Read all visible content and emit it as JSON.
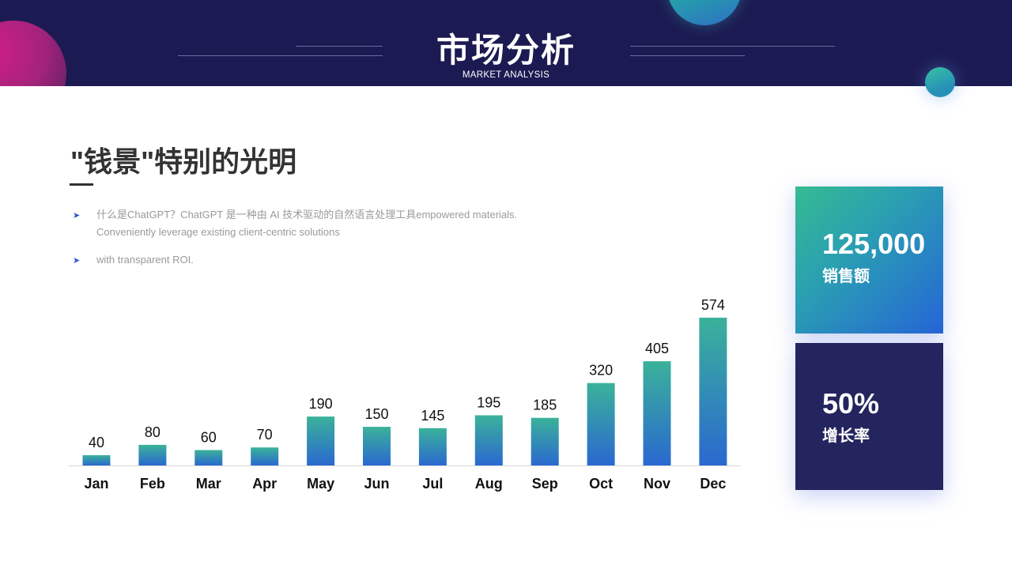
{
  "header": {
    "title": "市场分析",
    "subtitle": "MARKET ANALYSIS"
  },
  "section": {
    "heading": "\"钱景\"特别的光明",
    "bullets": [
      {
        "line1": "什么是ChatGPT？ChatGPT 是一种由 AI 技术驱动的自然语言处理工具empowered materials.",
        "line2": "Conveniently leverage existing client-centric solutions"
      },
      {
        "line1": "with transparent ROI.",
        "line2": ""
      }
    ]
  },
  "chart_data": {
    "type": "bar",
    "categories": [
      "Jan",
      "Feb",
      "Mar",
      "Apr",
      "May",
      "Jun",
      "Jul",
      "Aug",
      "Sep",
      "Oct",
      "Nov",
      "Dec"
    ],
    "values": [
      40,
      80,
      60,
      70,
      190,
      150,
      145,
      195,
      185,
      320,
      405,
      574
    ],
    "ylim": [
      0,
      574
    ],
    "grid": false,
    "colors": {
      "top": "#3bb29a",
      "bottom": "#2a68d0"
    }
  },
  "stats": [
    {
      "value": "125,000",
      "label": "销售额"
    },
    {
      "value": "50%",
      "label": "增长率"
    }
  ],
  "colors": {
    "header_bg": "#1c1a52",
    "accent_teal": "#35bb92",
    "accent_blue": "#2565d6",
    "card_dark": "#24245f"
  },
  "icons": [
    "bullet-arrow-icon"
  ]
}
